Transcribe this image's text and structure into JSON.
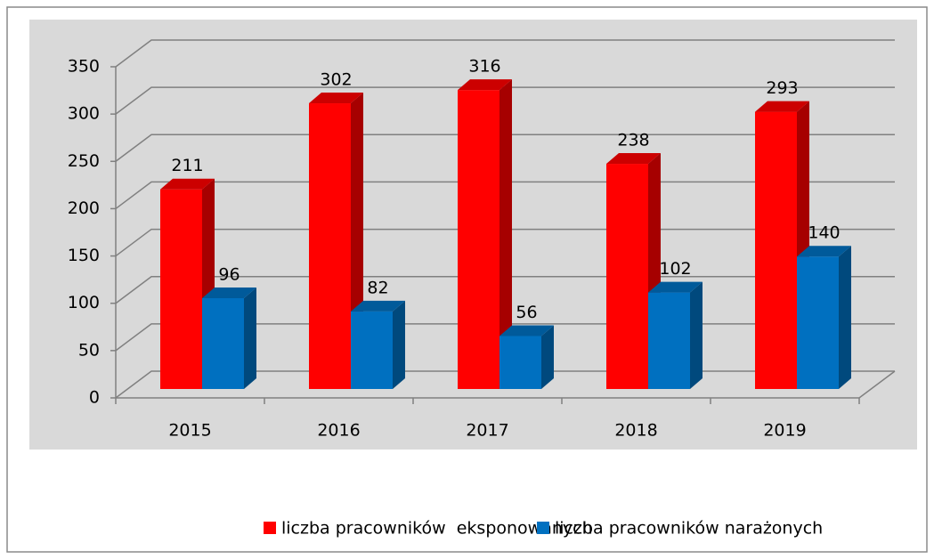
{
  "chart_data": {
    "type": "bar3d",
    "categories": [
      "2015",
      "2016",
      "2017",
      "2018",
      "2019"
    ],
    "series": [
      {
        "name": "liczba pracowników  eksponowanych",
        "color": "#ff0000",
        "values": [
          211,
          302,
          316,
          238,
          293
        ]
      },
      {
        "name": "liczba pracowników narażonych",
        "color": "#0070c0",
        "values": [
          96,
          82,
          56,
          102,
          140
        ]
      }
    ],
    "ylim": [
      0,
      350
    ],
    "yticks": [
      0,
      50,
      100,
      150,
      200,
      250,
      300,
      350
    ],
    "grid": true,
    "legend": "bottom"
  }
}
